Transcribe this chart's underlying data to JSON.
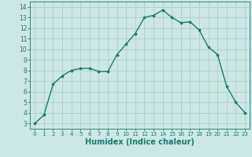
{
  "x": [
    0,
    1,
    2,
    3,
    4,
    5,
    6,
    7,
    8,
    9,
    10,
    11,
    12,
    13,
    14,
    15,
    16,
    17,
    18,
    19,
    20,
    21,
    22,
    23
  ],
  "y": [
    3.0,
    3.8,
    6.7,
    7.5,
    8.0,
    8.2,
    8.2,
    7.9,
    7.9,
    9.5,
    10.5,
    11.5,
    13.0,
    13.2,
    13.7,
    13.0,
    12.5,
    12.6,
    11.8,
    10.2,
    9.5,
    6.5,
    5.0,
    4.0
  ],
  "line_color": "#1a7a6e",
  "marker": "o",
  "marker_size": 2.2,
  "bg_color": "#cce8e4",
  "grid_color": "#aacfca",
  "xlabel": "Humidex (Indice chaleur)",
  "xlim": [
    -0.5,
    23.5
  ],
  "ylim": [
    2.5,
    14.5
  ],
  "yticks": [
    3,
    4,
    5,
    6,
    7,
    8,
    9,
    10,
    11,
    12,
    13,
    14
  ],
  "xticks": [
    0,
    1,
    2,
    3,
    4,
    5,
    6,
    7,
    8,
    9,
    10,
    11,
    12,
    13,
    14,
    15,
    16,
    17,
    18,
    19,
    20,
    21,
    22,
    23
  ],
  "tick_fontsize": 5.5,
  "xlabel_fontsize": 7.0,
  "line_width": 1.0
}
